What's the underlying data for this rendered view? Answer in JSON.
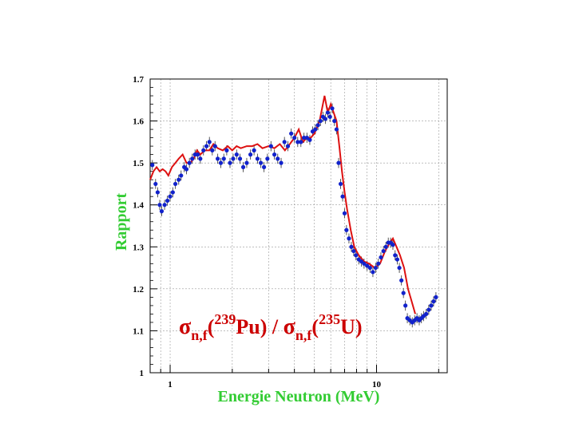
{
  "chart_data": {
    "type": "line",
    "title": "",
    "xlabel": "Energie Neutron (MeV)",
    "ylabel": "Rapport",
    "x_scale": "log",
    "xlim": [
      0.8,
      22
    ],
    "ylim": [
      1.0,
      1.7
    ],
    "x_ticks": [
      {
        "value": 1,
        "label": "1"
      },
      {
        "value": 10,
        "label": "10"
      }
    ],
    "y_ticks": [
      {
        "value": 1.0,
        "label": "1"
      },
      {
        "value": 1.1,
        "label": "1.1"
      },
      {
        "value": 1.2,
        "label": "1.2"
      },
      {
        "value": 1.3,
        "label": "1.3"
      },
      {
        "value": 1.4,
        "label": "1.4"
      },
      {
        "value": 1.5,
        "label": "1.5"
      },
      {
        "value": 1.6,
        "label": "1.6"
      },
      {
        "value": 1.7,
        "label": "1.7"
      }
    ],
    "grid": true,
    "annotation": {
      "sigma": "σ",
      "sub": "n,f",
      "sup1": "239",
      "el1": "Pu",
      "sep": ") / ",
      "sup2": "235",
      "el2": "U",
      "open": "(",
      "close": ")"
    },
    "colors": {
      "line": "#dd1111",
      "points": "#1122cc",
      "errorbars": "#444444",
      "axis_title": "#33cc33",
      "annotation": "#cc0000"
    },
    "series": [
      {
        "kind": "line",
        "points": [
          [
            0.8,
            1.46
          ],
          [
            0.83,
            1.48
          ],
          [
            0.86,
            1.49
          ],
          [
            0.89,
            1.48
          ],
          [
            0.92,
            1.485
          ],
          [
            0.95,
            1.48
          ],
          [
            0.98,
            1.47
          ],
          [
            1.02,
            1.49
          ],
          [
            1.06,
            1.5
          ],
          [
            1.1,
            1.51
          ],
          [
            1.15,
            1.52
          ],
          [
            1.2,
            1.5
          ],
          [
            1.25,
            1.5
          ],
          [
            1.3,
            1.51
          ],
          [
            1.35,
            1.53
          ],
          [
            1.4,
            1.52
          ],
          [
            1.47,
            1.53
          ],
          [
            1.55,
            1.53
          ],
          [
            1.62,
            1.545
          ],
          [
            1.7,
            1.535
          ],
          [
            1.8,
            1.53
          ],
          [
            1.9,
            1.54
          ],
          [
            2.0,
            1.53
          ],
          [
            2.1,
            1.54
          ],
          [
            2.2,
            1.535
          ],
          [
            2.35,
            1.54
          ],
          [
            2.5,
            1.54
          ],
          [
            2.65,
            1.545
          ],
          [
            2.8,
            1.535
          ],
          [
            3.0,
            1.54
          ],
          [
            3.2,
            1.535
          ],
          [
            3.4,
            1.545
          ],
          [
            3.6,
            1.53
          ],
          [
            3.8,
            1.545
          ],
          [
            4.0,
            1.56
          ],
          [
            4.2,
            1.58
          ],
          [
            4.4,
            1.55
          ],
          [
            4.6,
            1.56
          ],
          [
            4.8,
            1.56
          ],
          [
            5.0,
            1.57
          ],
          [
            5.3,
            1.6
          ],
          [
            5.6,
            1.66
          ],
          [
            5.8,
            1.62
          ],
          [
            6.0,
            1.64
          ],
          [
            6.2,
            1.62
          ],
          [
            6.4,
            1.6
          ],
          [
            6.6,
            1.54
          ],
          [
            6.8,
            1.48
          ],
          [
            7.0,
            1.43
          ],
          [
            7.2,
            1.39
          ],
          [
            7.5,
            1.34
          ],
          [
            7.8,
            1.3
          ],
          [
            8.2,
            1.28
          ],
          [
            8.7,
            1.265
          ],
          [
            9.2,
            1.26
          ],
          [
            9.8,
            1.25
          ],
          [
            10.4,
            1.26
          ],
          [
            11.0,
            1.29
          ],
          [
            11.6,
            1.31
          ],
          [
            12.0,
            1.32
          ],
          [
            12.5,
            1.3
          ],
          [
            13.0,
            1.28
          ],
          [
            13.6,
            1.25
          ],
          [
            14.2,
            1.2
          ],
          [
            14.8,
            1.17
          ],
          [
            15.4,
            1.14
          ]
        ]
      },
      {
        "kind": "scatter",
        "points": [
          [
            0.82,
            1.495,
            0.012
          ],
          [
            0.85,
            1.45,
            0.012
          ],
          [
            0.87,
            1.43,
            0.012
          ],
          [
            0.89,
            1.4,
            0.012
          ],
          [
            0.91,
            1.385,
            0.012
          ],
          [
            0.94,
            1.4,
            0.012
          ],
          [
            0.97,
            1.41,
            0.012
          ],
          [
            1.0,
            1.42,
            0.012
          ],
          [
            1.03,
            1.43,
            0.012
          ],
          [
            1.06,
            1.45,
            0.012
          ],
          [
            1.1,
            1.46,
            0.012
          ],
          [
            1.13,
            1.47,
            0.012
          ],
          [
            1.17,
            1.49,
            0.012
          ],
          [
            1.2,
            1.485,
            0.012
          ],
          [
            1.24,
            1.5,
            0.012
          ],
          [
            1.28,
            1.51,
            0.012
          ],
          [
            1.32,
            1.52,
            0.012
          ],
          [
            1.36,
            1.52,
            0.012
          ],
          [
            1.4,
            1.51,
            0.012
          ],
          [
            1.45,
            1.53,
            0.012
          ],
          [
            1.5,
            1.54,
            0.012
          ],
          [
            1.55,
            1.55,
            0.012
          ],
          [
            1.6,
            1.53,
            0.012
          ],
          [
            1.65,
            1.54,
            0.012
          ],
          [
            1.7,
            1.51,
            0.012
          ],
          [
            1.76,
            1.5,
            0.012
          ],
          [
            1.82,
            1.51,
            0.012
          ],
          [
            1.88,
            1.53,
            0.012
          ],
          [
            1.95,
            1.5,
            0.012
          ],
          [
            2.02,
            1.51,
            0.012
          ],
          [
            2.1,
            1.52,
            0.012
          ],
          [
            2.18,
            1.51,
            0.012
          ],
          [
            2.26,
            1.49,
            0.012
          ],
          [
            2.35,
            1.5,
            0.012
          ],
          [
            2.45,
            1.52,
            0.012
          ],
          [
            2.55,
            1.53,
            0.012
          ],
          [
            2.65,
            1.51,
            0.012
          ],
          [
            2.75,
            1.5,
            0.012
          ],
          [
            2.85,
            1.49,
            0.012
          ],
          [
            2.96,
            1.51,
            0.012
          ],
          [
            3.08,
            1.54,
            0.012
          ],
          [
            3.2,
            1.52,
            0.012
          ],
          [
            3.32,
            1.51,
            0.012
          ],
          [
            3.45,
            1.5,
            0.012
          ],
          [
            3.58,
            1.55,
            0.012
          ],
          [
            3.72,
            1.54,
            0.012
          ],
          [
            3.86,
            1.57,
            0.012
          ],
          [
            4.0,
            1.56,
            0.012
          ],
          [
            4.15,
            1.55,
            0.012
          ],
          [
            4.3,
            1.55,
            0.012
          ],
          [
            4.45,
            1.56,
            0.012
          ],
          [
            4.6,
            1.56,
            0.012
          ],
          [
            4.75,
            1.555,
            0.012
          ],
          [
            4.9,
            1.575,
            0.012
          ],
          [
            5.05,
            1.58,
            0.012
          ],
          [
            5.2,
            1.59,
            0.012
          ],
          [
            5.35,
            1.6,
            0.012
          ],
          [
            5.5,
            1.61,
            0.012
          ],
          [
            5.65,
            1.605,
            0.012
          ],
          [
            5.8,
            1.62,
            0.012
          ],
          [
            5.95,
            1.61,
            0.012
          ],
          [
            6.1,
            1.63,
            0.012
          ],
          [
            6.25,
            1.6,
            0.012
          ],
          [
            6.4,
            1.58,
            0.012
          ],
          [
            6.55,
            1.5,
            0.012
          ],
          [
            6.7,
            1.45,
            0.012
          ],
          [
            6.85,
            1.42,
            0.012
          ],
          [
            7.0,
            1.38,
            0.012
          ],
          [
            7.15,
            1.34,
            0.012
          ],
          [
            7.35,
            1.32,
            0.012
          ],
          [
            7.55,
            1.3,
            0.012
          ],
          [
            7.75,
            1.29,
            0.012
          ],
          [
            7.95,
            1.28,
            0.012
          ],
          [
            8.2,
            1.27,
            0.012
          ],
          [
            8.45,
            1.265,
            0.012
          ],
          [
            8.7,
            1.26,
            0.012
          ],
          [
            9.0,
            1.255,
            0.012
          ],
          [
            9.3,
            1.25,
            0.012
          ],
          [
            9.6,
            1.24,
            0.012
          ],
          [
            9.9,
            1.25,
            0.012
          ],
          [
            10.2,
            1.26,
            0.012
          ],
          [
            10.5,
            1.275,
            0.012
          ],
          [
            10.8,
            1.29,
            0.012
          ],
          [
            11.1,
            1.3,
            0.012
          ],
          [
            11.4,
            1.31,
            0.012
          ],
          [
            11.7,
            1.31,
            0.012
          ],
          [
            12.0,
            1.305,
            0.012
          ],
          [
            12.3,
            1.28,
            0.012
          ],
          [
            12.6,
            1.27,
            0.012
          ],
          [
            12.9,
            1.25,
            0.012
          ],
          [
            13.2,
            1.22,
            0.012
          ],
          [
            13.5,
            1.19,
            0.012
          ],
          [
            13.8,
            1.16,
            0.012
          ],
          [
            14.1,
            1.13,
            0.012
          ],
          [
            14.5,
            1.125,
            0.012
          ],
          [
            14.9,
            1.12,
            0.012
          ],
          [
            15.3,
            1.125,
            0.012
          ],
          [
            15.7,
            1.13,
            0.012
          ],
          [
            16.1,
            1.125,
            0.012
          ],
          [
            16.5,
            1.13,
            0.012
          ],
          [
            16.9,
            1.135,
            0.012
          ],
          [
            17.4,
            1.14,
            0.012
          ],
          [
            17.9,
            1.15,
            0.012
          ],
          [
            18.4,
            1.16,
            0.012
          ],
          [
            18.9,
            1.17,
            0.012
          ],
          [
            19.4,
            1.18,
            0.012
          ]
        ]
      }
    ]
  }
}
